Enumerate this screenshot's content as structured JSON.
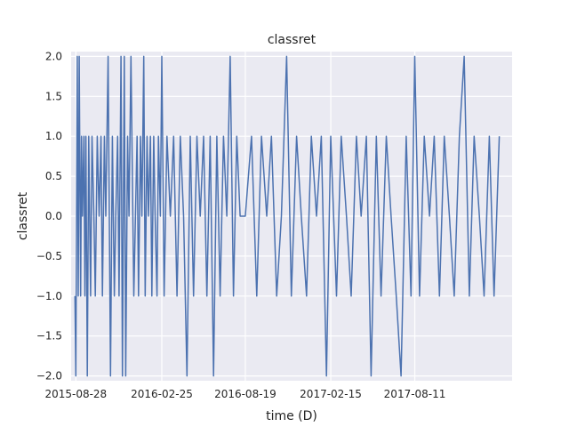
{
  "chart_data": {
    "type": "line",
    "title": "classret",
    "xlabel": "time (D)",
    "ylabel": "classret",
    "grid": true,
    "ylim": [
      -2.06,
      2.06
    ],
    "xlim": [
      "2015-08-18",
      "2018-03-04"
    ],
    "x_ticks": [
      "2015-08-28",
      "2016-02-25",
      "2016-08-19",
      "2017-02-15",
      "2017-08-11"
    ],
    "y_ticks": [
      "2.0",
      "1.5",
      "1.0",
      "0.5",
      "0.0",
      "−0.5",
      "−1.0",
      "−1.5",
      "−2.0"
    ],
    "y_tick_values": [
      2.0,
      1.5,
      1.0,
      0.5,
      0.0,
      -0.5,
      -1.0,
      -1.5,
      -2.0
    ],
    "series": [
      {
        "name": "classret",
        "color": "#4c72b0",
        "x": [
          "2015-08-26",
          "2015-08-28",
          "2015-08-31",
          "2015-09-02",
          "2015-09-04",
          "2015-09-07",
          "2015-09-09",
          "2015-09-11",
          "2015-09-14",
          "2015-09-16",
          "2015-09-18",
          "2015-09-21",
          "2015-09-24",
          "2015-09-28",
          "2015-10-01",
          "2015-10-05",
          "2015-10-08",
          "2015-10-12",
          "2015-10-16",
          "2015-10-20",
          "2015-10-23",
          "2015-10-27",
          "2015-10-30",
          "2015-11-04",
          "2015-11-09",
          "2015-11-13",
          "2015-11-17",
          "2015-11-20",
          "2015-11-24",
          "2015-11-27",
          "2015-12-01",
          "2015-12-04",
          "2015-12-08",
          "2015-12-11",
          "2015-12-15",
          "2015-12-18",
          "2015-12-22",
          "2015-12-28",
          "2016-01-04",
          "2016-01-07",
          "2016-01-11",
          "2016-01-14",
          "2016-01-18",
          "2016-01-21",
          "2016-01-25",
          "2016-01-28",
          "2016-02-01",
          "2016-02-04",
          "2016-02-08",
          "2016-02-11",
          "2016-02-15",
          "2016-02-18",
          "2016-02-22",
          "2016-02-25",
          "2016-03-01",
          "2016-03-07",
          "2016-03-14",
          "2016-03-21",
          "2016-03-28",
          "2016-04-04",
          "2016-04-11",
          "2016-04-18",
          "2016-04-25",
          "2016-05-02",
          "2016-05-09",
          "2016-05-16",
          "2016-05-23",
          "2016-05-30",
          "2016-06-06",
          "2016-06-13",
          "2016-06-20",
          "2016-06-27",
          "2016-07-04",
          "2016-07-11",
          "2016-07-18",
          "2016-07-25",
          "2016-08-01",
          "2016-08-08",
          "2016-08-19",
          "2016-09-01",
          "2016-09-12",
          "2016-09-22",
          "2016-10-03",
          "2016-10-13",
          "2016-10-24",
          "2016-11-03",
          "2016-11-14",
          "2016-11-24",
          "2016-12-05",
          "2016-12-15",
          "2016-12-26",
          "2017-01-05",
          "2017-01-16",
          "2017-01-26",
          "2017-02-06",
          "2017-02-15",
          "2017-02-27",
          "2017-03-09",
          "2017-03-20",
          "2017-03-30",
          "2017-04-10",
          "2017-04-20",
          "2017-05-01",
          "2017-05-11",
          "2017-05-22",
          "2017-06-01",
          "2017-06-12",
          "2017-06-22",
          "2017-07-03",
          "2017-07-13",
          "2017-07-24",
          "2017-08-03",
          "2017-08-11",
          "2017-08-21",
          "2017-08-31",
          "2017-09-11",
          "2017-09-21",
          "2017-10-02",
          "2017-10-12",
          "2017-10-23",
          "2017-11-02",
          "2017-11-13",
          "2017-11-23",
          "2017-12-04",
          "2017-12-14",
          "2017-12-25",
          "2018-01-04",
          "2018-01-15",
          "2018-01-25",
          "2018-02-05"
        ],
        "values": [
          -1,
          -2,
          2,
          -1,
          2,
          -1,
          1,
          0,
          1,
          -1,
          1,
          -2,
          1,
          -1,
          1,
          0,
          -1,
          1,
          0,
          1,
          -1,
          1,
          0,
          2,
          -2,
          1,
          -1,
          0,
          1,
          -1,
          2,
          -2,
          2,
          -2,
          1,
          0,
          2,
          -1,
          1,
          -1,
          1,
          0,
          2,
          -1,
          1,
          0,
          1,
          -1,
          1,
          0,
          -1,
          1,
          0,
          2,
          -1,
          1,
          0,
          1,
          -1,
          1,
          0,
          -2,
          1,
          -1,
          1,
          0,
          1,
          -1,
          1,
          -2,
          1,
          -1,
          1,
          0,
          2,
          -1,
          1,
          0,
          0,
          1,
          -1,
          1,
          0,
          1,
          -1,
          0,
          2,
          -1,
          1,
          0,
          -1,
          1,
          0,
          1,
          -2,
          1,
          -1,
          1,
          0,
          -1,
          1,
          0,
          1,
          -2,
          1,
          -1,
          1,
          0,
          -1,
          -2,
          1,
          -1,
          2,
          -1,
          1,
          0,
          1,
          -1,
          1,
          0,
          -1,
          1,
          2,
          -1,
          1,
          0,
          -1,
          1,
          -1,
          1
        ]
      }
    ]
  }
}
